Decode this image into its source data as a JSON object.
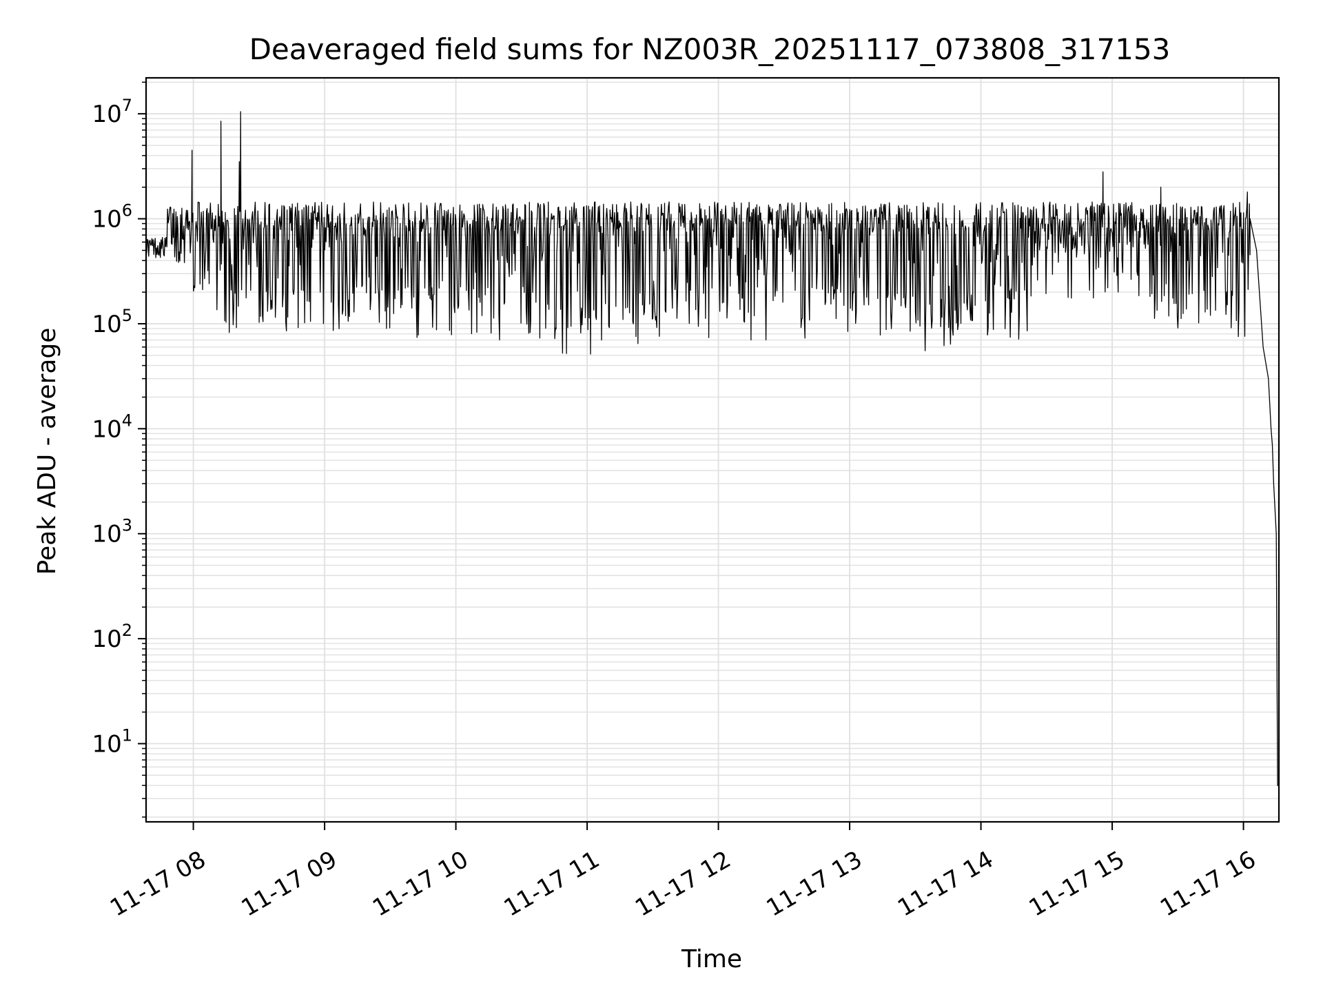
{
  "chart_data": {
    "type": "line",
    "title": "Deaveraged field sums for NZ003R_20251117_073808_317153",
    "xlabel": "Time",
    "ylabel": "Peak ADU - average",
    "yscale": "log",
    "ylim": [
      1.8,
      22000000
    ],
    "xlim_hours": [
      7.64,
      16.27
    ],
    "grid": true,
    "line_color": "#000000",
    "grid_color": "#e0e0e0",
    "x_ticks": [
      {
        "value": 8,
        "label": "11-17 08"
      },
      {
        "value": 9,
        "label": "11-17 09"
      },
      {
        "value": 10,
        "label": "11-17 10"
      },
      {
        "value": 11,
        "label": "11-17 11"
      },
      {
        "value": 12,
        "label": "11-17 12"
      },
      {
        "value": 13,
        "label": "11-17 13"
      },
      {
        "value": 14,
        "label": "11-17 14"
      },
      {
        "value": 15,
        "label": "11-17 15"
      },
      {
        "value": 16,
        "label": "11-17 16"
      }
    ],
    "y_ticks": [
      {
        "value": 10,
        "base": "10",
        "exp": "1"
      },
      {
        "value": 100,
        "base": "10",
        "exp": "2"
      },
      {
        "value": 1000,
        "base": "10",
        "exp": "3"
      },
      {
        "value": 10000,
        "base": "10",
        "exp": "4"
      },
      {
        "value": 100000,
        "base": "10",
        "exp": "5"
      },
      {
        "value": 1000000,
        "base": "10",
        "exp": "6"
      },
      {
        "value": 10000000,
        "base": "10",
        "exp": "7"
      }
    ],
    "series_profile": {
      "start_hours": 7.64,
      "end_hours": 16.27,
      "typical_peak": 1000000,
      "typical_trough": 100000,
      "early_level": 500000,
      "spikes": [
        {
          "x": 7.99,
          "y": 4500000
        },
        {
          "x": 8.21,
          "y": 8500000
        },
        {
          "x": 8.35,
          "y": 3500000
        },
        {
          "x": 8.36,
          "y": 10500000
        },
        {
          "x": 14.93,
          "y": 2800000
        },
        {
          "x": 15.37,
          "y": 2000000
        },
        {
          "x": 16.03,
          "y": 1800000
        }
      ],
      "decay": [
        {
          "x": 16.05,
          "y": 1000000
        },
        {
          "x": 16.1,
          "y": 500000
        },
        {
          "x": 16.15,
          "y": 60000
        },
        {
          "x": 16.19,
          "y": 30000
        },
        {
          "x": 16.21,
          "y": 10000
        },
        {
          "x": 16.22,
          "y": 7000
        },
        {
          "x": 16.23,
          "y": 3000
        },
        {
          "x": 16.25,
          "y": 1000
        },
        {
          "x": 16.26,
          "y": 4
        },
        {
          "x": 16.27,
          "y": 4
        }
      ]
    }
  }
}
